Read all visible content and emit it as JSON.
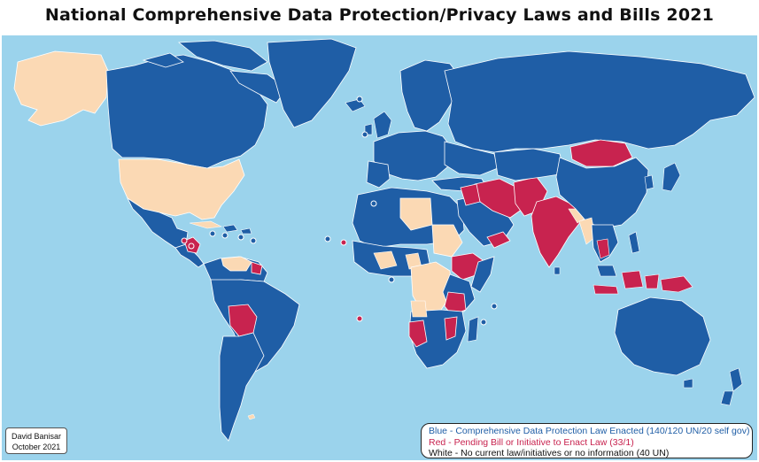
{
  "title": "National Comprehensive Data Protection/Privacy Laws and Bills 2021",
  "credit": {
    "author": "David Banisar",
    "date": "October 2021"
  },
  "colors": {
    "ocean": "#9bd3ec",
    "enacted": "#1f5ea6",
    "pending": "#c8234f",
    "none": "#fbd9b4",
    "border": "#ffffff"
  },
  "legend": [
    {
      "category": "enacted",
      "text": "Blue - Comprehensive Data Protection Law Enacted (140/120 UN/20 self gov)",
      "color": "#1f5ea6"
    },
    {
      "category": "pending",
      "text": "Red -  Pending Bill or Initiative to Enact Law (33/1)",
      "color": "#c8234f"
    },
    {
      "category": "none",
      "text": "White - No current law/initiatives or no information (40 UN)",
      "color": "#111111"
    }
  ]
}
